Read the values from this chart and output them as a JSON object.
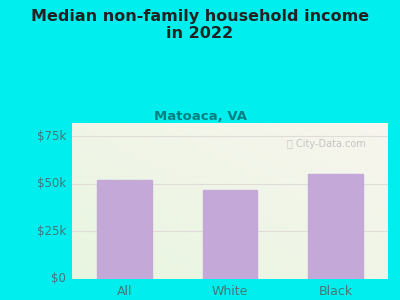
{
  "categories": [
    "All",
    "White",
    "Black"
  ],
  "values": [
    52000,
    47000,
    55000
  ],
  "bar_color": "#c4a8d8",
  "title_line1": "Median non-family household income",
  "title_line2": "in 2022",
  "subtitle": "Matoaca, VA",
  "watermark": "ⓘ City-Data.com",
  "yticks": [
    0,
    25000,
    50000,
    75000
  ],
  "ytick_labels": [
    "$0",
    "$25k",
    "$50k",
    "$75k"
  ],
  "ylim": [
    0,
    82000
  ],
  "figure_bg": "#00EEEE",
  "plot_bg_topleft": "#e8f5e0",
  "plot_bg_bottomright": "#f8f5ee",
  "title_color": "#222222",
  "subtitle_color": "#008080",
  "tick_label_color": "#447777",
  "watermark_color": "#bbbbbb",
  "grid_color": "#e0ddd8",
  "figsize": [
    4.0,
    3.0
  ],
  "dpi": 100
}
